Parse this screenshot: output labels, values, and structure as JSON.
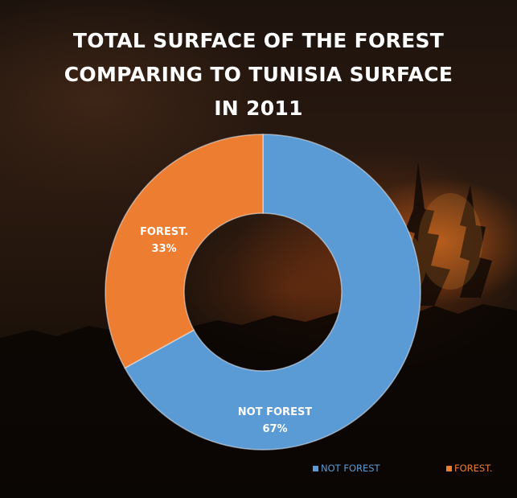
{
  "colors": {
    "not_forest": "#5b9bd5",
    "forest": "#ed7d31",
    "title": "#ffffff",
    "label": "#ffffff"
  },
  "chart_data": {
    "type": "pie",
    "variant": "doughnut",
    "title": "TOTAL SURFACE OF THE FOREST COMPARING TO TUNISIA SURFACE IN 2011",
    "title_lines": [
      "TOTAL SURFACE OF THE FOREST",
      "COMPARING TO TUNISIA SURFACE",
      "IN 2011"
    ],
    "categories": [
      "NOT FOREST",
      "FOREST."
    ],
    "values": [
      67,
      33
    ],
    "unit": "%",
    "data_labels": [
      {
        "name": "NOT FOREST",
        "value": "67%"
      },
      {
        "name": "FOREST.",
        "value": "33%"
      }
    ],
    "legend": {
      "position": "bottom-right",
      "entries": [
        "NOT FOREST",
        "FOREST."
      ]
    }
  }
}
